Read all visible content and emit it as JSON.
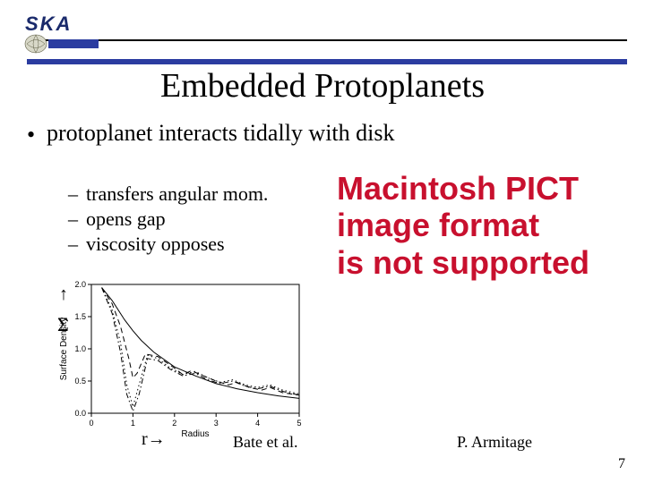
{
  "logo": {
    "text": "SKA"
  },
  "title": "Embedded Protoplanets",
  "bullets": {
    "l1": "protoplanet interacts tidally with disk",
    "l2a": "transfers angular mom.",
    "l2b": "opens gap",
    "l2c": "viscosity opposes"
  },
  "chart": {
    "ylabel": "Surface Density",
    "xlabel": "Radius",
    "yticks": [
      "0.0",
      "0.5",
      "1.0",
      "1.5",
      "2.0"
    ],
    "xticks": [
      "0",
      "1",
      "2",
      "3",
      "4",
      "5"
    ],
    "xlim": [
      0,
      5
    ],
    "ylim": [
      0,
      2.0
    ],
    "series": [
      {
        "style": "solid",
        "color": "#000000",
        "width": 1.0,
        "pts": [
          [
            0.25,
            1.95
          ],
          [
            0.5,
            1.75
          ],
          [
            0.8,
            1.45
          ],
          [
            1.0,
            1.28
          ],
          [
            1.2,
            1.13
          ],
          [
            1.5,
            0.95
          ],
          [
            2.0,
            0.72
          ],
          [
            2.5,
            0.58
          ],
          [
            3.0,
            0.46
          ],
          [
            3.5,
            0.38
          ],
          [
            4.0,
            0.32
          ],
          [
            4.5,
            0.27
          ],
          [
            5.0,
            0.23
          ]
        ]
      },
      {
        "style": "dashed",
        "color": "#000000",
        "width": 1.0,
        "pts": [
          [
            0.25,
            1.95
          ],
          [
            0.5,
            1.7
          ],
          [
            0.7,
            1.35
          ],
          [
            0.9,
            0.85
          ],
          [
            1.0,
            0.55
          ],
          [
            1.1,
            0.62
          ],
          [
            1.3,
            0.92
          ],
          [
            1.6,
            0.88
          ],
          [
            2.0,
            0.7
          ],
          [
            2.2,
            0.6
          ],
          [
            2.4,
            0.66
          ],
          [
            2.7,
            0.58
          ],
          [
            3.0,
            0.5
          ],
          [
            3.3,
            0.44
          ],
          [
            3.5,
            0.48
          ],
          [
            3.8,
            0.4
          ],
          [
            4.1,
            0.36
          ],
          [
            4.3,
            0.4
          ],
          [
            4.6,
            0.32
          ],
          [
            5.0,
            0.28
          ]
        ]
      },
      {
        "style": "dotted",
        "color": "#000000",
        "width": 1.0,
        "pts": [
          [
            0.25,
            1.95
          ],
          [
            0.5,
            1.6
          ],
          [
            0.7,
            1.1
          ],
          [
            0.85,
            0.45
          ],
          [
            1.0,
            0.1
          ],
          [
            1.15,
            0.45
          ],
          [
            1.35,
            0.9
          ],
          [
            1.6,
            0.85
          ],
          [
            1.9,
            0.7
          ],
          [
            2.2,
            0.6
          ],
          [
            2.5,
            0.65
          ],
          [
            2.8,
            0.55
          ],
          [
            3.1,
            0.48
          ],
          [
            3.4,
            0.52
          ],
          [
            3.7,
            0.44
          ],
          [
            4.0,
            0.4
          ],
          [
            4.3,
            0.44
          ],
          [
            4.6,
            0.36
          ],
          [
            5.0,
            0.3
          ]
        ]
      },
      {
        "style": "dashdot",
        "color": "#000000",
        "width": 1.0,
        "pts": [
          [
            0.25,
            1.95
          ],
          [
            0.5,
            1.55
          ],
          [
            0.7,
            0.95
          ],
          [
            0.85,
            0.3
          ],
          [
            1.0,
            0.03
          ],
          [
            1.15,
            0.3
          ],
          [
            1.35,
            0.85
          ],
          [
            1.6,
            0.82
          ],
          [
            1.9,
            0.68
          ],
          [
            2.2,
            0.58
          ],
          [
            2.5,
            0.62
          ],
          [
            2.8,
            0.52
          ],
          [
            3.1,
            0.46
          ],
          [
            3.4,
            0.5
          ],
          [
            3.7,
            0.42
          ],
          [
            4.0,
            0.38
          ],
          [
            4.3,
            0.42
          ],
          [
            4.6,
            0.34
          ],
          [
            5.0,
            0.28
          ]
        ]
      }
    ],
    "axis_color": "#000000",
    "tick_fontsize": 9,
    "label_fontsize": 10
  },
  "annotations": {
    "sigma_arrow": "↑",
    "sigma": "Σ",
    "r": "r→",
    "bate": "Bate et al.",
    "armitage": "P. Armitage"
  },
  "pict_error": {
    "line1": "Macintosh PICT",
    "line2": "image format",
    "line3": "is not supported"
  },
  "page_number": "7"
}
